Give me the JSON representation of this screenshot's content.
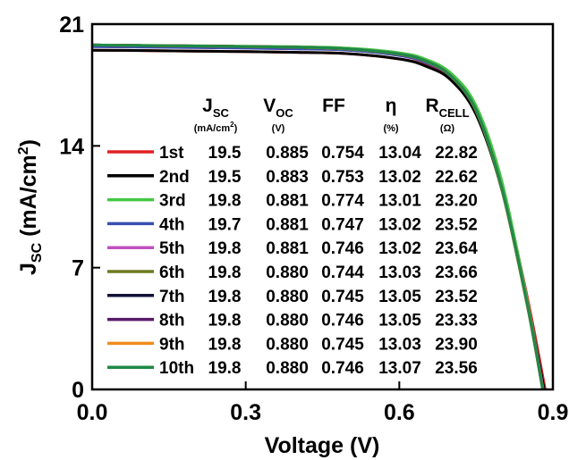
{
  "chart_data": {
    "type": "line",
    "xlabel": "Voltage (V)",
    "ylabel": {
      "main": "J",
      "sub": "SC",
      "unit": " (mA/cm",
      "sup": "2",
      "close": ")"
    },
    "xlim": [
      0,
      0.9
    ],
    "ylim": [
      0,
      21
    ],
    "xticks": [
      "0.0",
      "0.3",
      "0.6",
      "0.9"
    ],
    "yticks": [
      "0",
      "7",
      "14",
      "21"
    ],
    "xtick_values": [
      0,
      0.3,
      0.6,
      0.9
    ],
    "ytick_values": [
      0,
      7,
      14,
      21
    ],
    "grid": false,
    "legend_position": "inside, left-center",
    "table": {
      "headers": [
        {
          "main": "J",
          "sub": "SC",
          "unit": "(mA/cm",
          "unit_sup": "2",
          "unit_close": ")"
        },
        {
          "main": "V",
          "sub": "OC",
          "unit": "(V)",
          "unit_sup": "",
          "unit_close": ""
        },
        {
          "main": "FF",
          "sub": "",
          "unit": "",
          "unit_sup": "",
          "unit_close": ""
        },
        {
          "main": "η",
          "sub": "",
          "unit": "(%)",
          "unit_sup": "",
          "unit_close": ""
        },
        {
          "main": "R",
          "sub": "CELL",
          "unit": "(Ω)",
          "unit_sup": "",
          "unit_close": ""
        }
      ],
      "rows": [
        [
          "19.5",
          "0.885",
          "0.754",
          "13.04",
          "22.82"
        ],
        [
          "19.5",
          "0.883",
          "0.753",
          "13.02",
          "22.62"
        ],
        [
          "19.8",
          "0.881",
          "0.774",
          "13.01",
          "23.20"
        ],
        [
          "19.7",
          "0.881",
          "0.747",
          "13.02",
          "23.52"
        ],
        [
          "19.8",
          "0.881",
          "0.746",
          "13.02",
          "23.64"
        ],
        [
          "19.8",
          "0.880",
          "0.744",
          "13.03",
          "23.66"
        ],
        [
          "19.8",
          "0.880",
          "0.745",
          "13.05",
          "23.52"
        ],
        [
          "19.8",
          "0.880",
          "0.746",
          "13.05",
          "23.33"
        ],
        [
          "19.8",
          "0.880",
          "0.745",
          "13.03",
          "23.90"
        ],
        [
          "19.8",
          "0.880",
          "0.746",
          "13.07",
          "23.56"
        ]
      ]
    },
    "series": [
      {
        "name": "1st",
        "color": "#e02020",
        "jsc": 19.5,
        "voc": 0.885,
        "x": [
          0,
          0.1,
          0.2,
          0.3,
          0.4,
          0.5,
          0.6,
          0.65,
          0.7,
          0.75,
          0.8,
          0.85,
          0.885
        ],
        "y": [
          19.5,
          19.48,
          19.45,
          19.42,
          19.38,
          19.3,
          19.0,
          18.65,
          17.85,
          15.9,
          11.7,
          5.3,
          0
        ]
      },
      {
        "name": "2nd",
        "color": "#000000",
        "jsc": 19.5,
        "voc": 0.883,
        "x": [
          0,
          0.1,
          0.2,
          0.3,
          0.4,
          0.5,
          0.6,
          0.65,
          0.7,
          0.75,
          0.8,
          0.85,
          0.883
        ],
        "y": [
          19.5,
          19.48,
          19.45,
          19.42,
          19.38,
          19.3,
          19.0,
          18.6,
          17.8,
          15.8,
          11.5,
          5.0,
          0
        ]
      },
      {
        "name": "3rd",
        "color": "#44c844",
        "jsc": 19.8,
        "voc": 0.881,
        "x": [
          0,
          0.1,
          0.2,
          0.3,
          0.4,
          0.5,
          0.6,
          0.65,
          0.7,
          0.75,
          0.8,
          0.85,
          0.881
        ],
        "y": [
          19.8,
          19.78,
          19.76,
          19.73,
          19.7,
          19.62,
          19.35,
          19.0,
          18.2,
          16.3,
          12.0,
          5.1,
          0
        ]
      },
      {
        "name": "4th",
        "color": "#3a4fb0",
        "jsc": 19.7,
        "voc": 0.881,
        "x": [
          0,
          0.1,
          0.2,
          0.3,
          0.4,
          0.5,
          0.6,
          0.65,
          0.7,
          0.75,
          0.8,
          0.85,
          0.881
        ],
        "y": [
          19.7,
          19.68,
          19.65,
          19.62,
          19.58,
          19.5,
          19.2,
          18.8,
          18.0,
          16.0,
          11.6,
          4.9,
          0
        ]
      },
      {
        "name": "5th",
        "color": "#c050c0",
        "jsc": 19.8,
        "voc": 0.881,
        "x": [
          0,
          0.1,
          0.2,
          0.3,
          0.4,
          0.5,
          0.6,
          0.65,
          0.7,
          0.75,
          0.8,
          0.85,
          0.881
        ],
        "y": [
          19.8,
          19.77,
          19.74,
          19.71,
          19.67,
          19.58,
          19.28,
          18.9,
          18.05,
          16.05,
          11.6,
          4.9,
          0
        ]
      },
      {
        "name": "6th",
        "color": "#6e7a1e",
        "jsc": 19.8,
        "voc": 0.88,
        "x": [
          0,
          0.1,
          0.2,
          0.3,
          0.4,
          0.5,
          0.6,
          0.65,
          0.7,
          0.75,
          0.8,
          0.85,
          0.88
        ],
        "y": [
          19.8,
          19.77,
          19.74,
          19.71,
          19.67,
          19.57,
          19.26,
          18.88,
          18.02,
          16.0,
          11.5,
          4.8,
          0
        ]
      },
      {
        "name": "7th",
        "color": "#121238",
        "jsc": 19.8,
        "voc": 0.88,
        "x": [
          0,
          0.1,
          0.2,
          0.3,
          0.4,
          0.5,
          0.6,
          0.65,
          0.7,
          0.75,
          0.8,
          0.85,
          0.88
        ],
        "y": [
          19.8,
          19.77,
          19.74,
          19.71,
          19.67,
          19.57,
          19.27,
          18.89,
          18.03,
          16.02,
          11.55,
          4.85,
          0
        ]
      },
      {
        "name": "8th",
        "color": "#5a1a6a",
        "jsc": 19.8,
        "voc": 0.88,
        "x": [
          0,
          0.1,
          0.2,
          0.3,
          0.4,
          0.5,
          0.6,
          0.65,
          0.7,
          0.75,
          0.8,
          0.85,
          0.88
        ],
        "y": [
          19.8,
          19.77,
          19.74,
          19.71,
          19.67,
          19.57,
          19.28,
          18.9,
          18.04,
          16.04,
          11.58,
          4.88,
          0
        ]
      },
      {
        "name": "9th",
        "color": "#f08c1e",
        "jsc": 19.8,
        "voc": 0.88,
        "x": [
          0,
          0.1,
          0.2,
          0.3,
          0.4,
          0.5,
          0.6,
          0.65,
          0.7,
          0.75,
          0.8,
          0.85,
          0.88
        ],
        "y": [
          19.8,
          19.77,
          19.74,
          19.71,
          19.67,
          19.57,
          19.27,
          18.89,
          18.03,
          16.02,
          11.55,
          4.85,
          0
        ]
      },
      {
        "name": "10th",
        "color": "#1e8a46",
        "jsc": 19.8,
        "voc": 0.88,
        "x": [
          0,
          0.1,
          0.2,
          0.3,
          0.4,
          0.5,
          0.6,
          0.65,
          0.7,
          0.75,
          0.8,
          0.85,
          0.88
        ],
        "y": [
          19.8,
          19.77,
          19.74,
          19.71,
          19.67,
          19.58,
          19.28,
          18.9,
          18.04,
          16.04,
          11.58,
          4.88,
          0
        ]
      }
    ]
  }
}
